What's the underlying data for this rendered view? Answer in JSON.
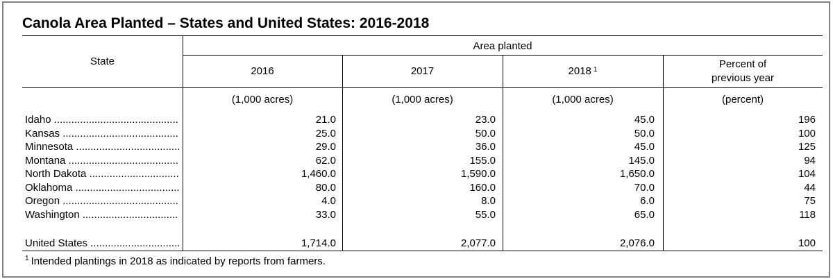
{
  "title": "Canola Area Planted – States and United States: 2016-2018",
  "header": {
    "state_label": "State",
    "group_label": "Area planted",
    "col_2016": "2016",
    "col_2017": "2017",
    "col_2018": "2018",
    "col_2018_footnote_marker": "1",
    "col_percent_line1": "Percent of",
    "col_percent_line2": "previous year"
  },
  "units": {
    "u2016": "(1,000 acres)",
    "u2017": "(1,000 acres)",
    "u2018": "(1,000 acres)",
    "upercent": "(percent)"
  },
  "rows": [
    {
      "state": "Idaho",
      "v2016": "21.0",
      "v2017": "23.0",
      "v2018": "45.0",
      "pct": "196"
    },
    {
      "state": "Kansas",
      "v2016": "25.0",
      "v2017": "50.0",
      "v2018": "50.0",
      "pct": "100"
    },
    {
      "state": "Minnesota",
      "v2016": "29.0",
      "v2017": "36.0",
      "v2018": "45.0",
      "pct": "125"
    },
    {
      "state": "Montana",
      "v2016": "62.0",
      "v2017": "155.0",
      "v2018": "145.0",
      "pct": "94"
    },
    {
      "state": "North Dakota",
      "v2016": "1,460.0",
      "v2017": "1,590.0",
      "v2018": "1,650.0",
      "pct": "104"
    },
    {
      "state": "Oklahoma",
      "v2016": "80.0",
      "v2017": "160.0",
      "v2018": "70.0",
      "pct": "44"
    },
    {
      "state": "Oregon",
      "v2016": "4.0",
      "v2017": "8.0",
      "v2018": "6.0",
      "pct": "75"
    },
    {
      "state": "Washington",
      "v2016": "33.0",
      "v2017": "55.0",
      "v2018": "65.0",
      "pct": "118"
    }
  ],
  "total": {
    "state": "United States",
    "v2016": "1,714.0",
    "v2017": "2,077.0",
    "v2018": "2,076.0",
    "pct": "100"
  },
  "footnote": {
    "marker": "1",
    "text": "Intended plantings in 2018 as indicated by reports from farmers."
  }
}
